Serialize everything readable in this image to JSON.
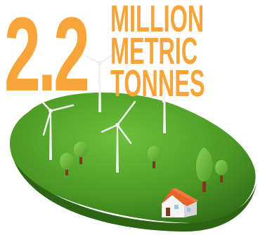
{
  "headline": {
    "number": "2.2",
    "unit_lines": [
      "MILLION",
      "METRIC",
      "TONNES"
    ]
  },
  "colors": {
    "accent_orange": "#f7a43a",
    "grass": "#4d9a26",
    "grass_dark": "#2f6d17",
    "tree_green": "#6fbf3b",
    "turbine_white": "#f2f2f2",
    "roof": "#e8622a",
    "house_wall": "#f4f4f4"
  },
  "illustration": {
    "turbines": [
      "wind-turbine",
      "wind-turbine",
      "wind-turbine",
      "wind-turbine"
    ],
    "trees": [
      "tree",
      "tree",
      "tree",
      "tree",
      "tree"
    ],
    "house": "house"
  }
}
